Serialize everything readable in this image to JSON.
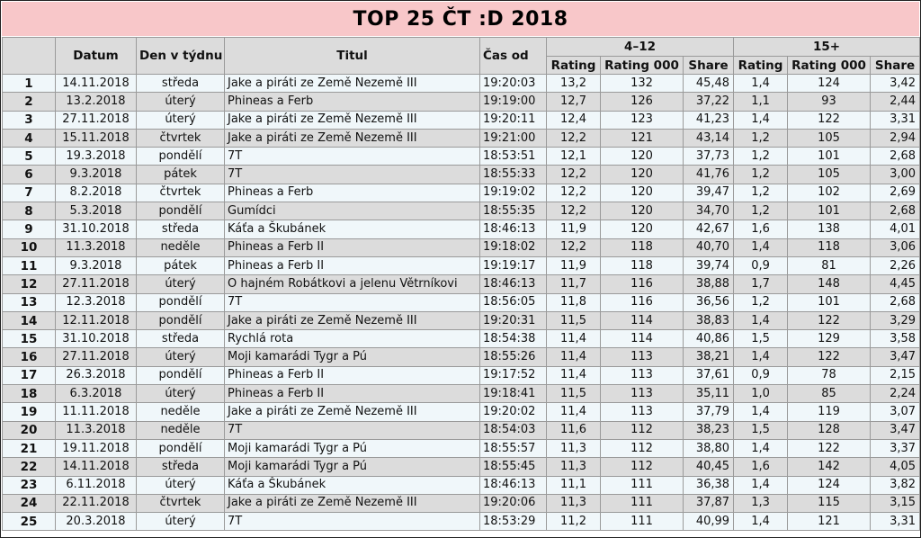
{
  "title": "TOP 25 ČT :D 2018",
  "headers": {
    "datum": "Datum",
    "den": "Den v týdnu",
    "titul": "Titul",
    "cas": "Čas od",
    "group1": "4–12",
    "group2": "15+",
    "rating": "Rating",
    "rating000": "Rating 000",
    "share": "Share"
  },
  "rows": [
    {
      "rank": "1",
      "datum": "14.11.2018",
      "den": "středa",
      "titul": "Jake a piráti ze Země Nezemě III",
      "cas": "19:20:03",
      "r1": "13,2",
      "r1k": "132",
      "s1": "45,48",
      "r2": "1,4",
      "r2k": "124",
      "s2": "3,42"
    },
    {
      "rank": "2",
      "datum": "13.2.2018",
      "den": "úterý",
      "titul": "Phineas a Ferb",
      "cas": "19:19:00",
      "r1": "12,7",
      "r1k": "126",
      "s1": "37,22",
      "r2": "1,1",
      "r2k": "93",
      "s2": "2,44"
    },
    {
      "rank": "3",
      "datum": "27.11.2018",
      "den": "úterý",
      "titul": "Jake a piráti ze Země Nezemě III",
      "cas": "19:20:11",
      "r1": "12,4",
      "r1k": "123",
      "s1": "41,23",
      "r2": "1,4",
      "r2k": "122",
      "s2": "3,31"
    },
    {
      "rank": "4",
      "datum": "15.11.2018",
      "den": "čtvrtek",
      "titul": "Jake a piráti ze Země Nezemě III",
      "cas": "19:21:00",
      "r1": "12,2",
      "r1k": "121",
      "s1": "43,14",
      "r2": "1,2",
      "r2k": "105",
      "s2": "2,94"
    },
    {
      "rank": "5",
      "datum": "19.3.2018",
      "den": "pondělí",
      "titul": "7T",
      "cas": "18:53:51",
      "r1": "12,1",
      "r1k": "120",
      "s1": "37,73",
      "r2": "1,2",
      "r2k": "101",
      "s2": "2,68"
    },
    {
      "rank": "6",
      "datum": "9.3.2018",
      "den": "pátek",
      "titul": "7T",
      "cas": "18:55:33",
      "r1": "12,2",
      "r1k": "120",
      "s1": "41,76",
      "r2": "1,2",
      "r2k": "105",
      "s2": "3,00"
    },
    {
      "rank": "7",
      "datum": "8.2.2018",
      "den": "čtvrtek",
      "titul": "Phineas a Ferb",
      "cas": "19:19:02",
      "r1": "12,2",
      "r1k": "120",
      "s1": "39,47",
      "r2": "1,2",
      "r2k": "102",
      "s2": "2,69"
    },
    {
      "rank": "8",
      "datum": "5.3.2018",
      "den": "pondělí",
      "titul": "Gumídci",
      "cas": "18:55:35",
      "r1": "12,2",
      "r1k": "120",
      "s1": "34,70",
      "r2": "1,2",
      "r2k": "101",
      "s2": "2,68"
    },
    {
      "rank": "9",
      "datum": "31.10.2018",
      "den": "středa",
      "titul": "Káťa a Škubánek",
      "cas": "18:46:13",
      "r1": "11,9",
      "r1k": "120",
      "s1": "42,67",
      "r2": "1,6",
      "r2k": "138",
      "s2": "4,01"
    },
    {
      "rank": "10",
      "datum": "11.3.2018",
      "den": "neděle",
      "titul": "Phineas a Ferb II",
      "cas": "19:18:02",
      "r1": "12,2",
      "r1k": "118",
      "s1": "40,70",
      "r2": "1,4",
      "r2k": "118",
      "s2": "3,06"
    },
    {
      "rank": "11",
      "datum": "9.3.2018",
      "den": "pátek",
      "titul": "Phineas a Ferb II",
      "cas": "19:19:17",
      "r1": "11,9",
      "r1k": "118",
      "s1": "39,74",
      "r2": "0,9",
      "r2k": "81",
      "s2": "2,26"
    },
    {
      "rank": "12",
      "datum": "27.11.2018",
      "den": "úterý",
      "titul": "O hajném Robátkovi a jelenu Větrníkovi",
      "cas": "18:46:13",
      "r1": "11,7",
      "r1k": "116",
      "s1": "38,88",
      "r2": "1,7",
      "r2k": "148",
      "s2": "4,45"
    },
    {
      "rank": "13",
      "datum": "12.3.2018",
      "den": "pondělí",
      "titul": "7T",
      "cas": "18:56:05",
      "r1": "11,8",
      "r1k": "116",
      "s1": "36,56",
      "r2": "1,2",
      "r2k": "101",
      "s2": "2,68"
    },
    {
      "rank": "14",
      "datum": "12.11.2018",
      "den": "pondělí",
      "titul": "Jake a piráti ze Země Nezemě III",
      "cas": "19:20:31",
      "r1": "11,5",
      "r1k": "114",
      "s1": "38,83",
      "r2": "1,4",
      "r2k": "122",
      "s2": "3,29"
    },
    {
      "rank": "15",
      "datum": "31.10.2018",
      "den": "středa",
      "titul": "Rychlá rota",
      "cas": "18:54:38",
      "r1": "11,4",
      "r1k": "114",
      "s1": "40,86",
      "r2": "1,5",
      "r2k": "129",
      "s2": "3,58"
    },
    {
      "rank": "16",
      "datum": "27.11.2018",
      "den": "úterý",
      "titul": "Moji kamarádi Tygr a Pú",
      "cas": "18:55:26",
      "r1": "11,4",
      "r1k": "113",
      "s1": "38,21",
      "r2": "1,4",
      "r2k": "122",
      "s2": "3,47"
    },
    {
      "rank": "17",
      "datum": "26.3.2018",
      "den": "pondělí",
      "titul": "Phineas a Ferb II",
      "cas": "19:17:52",
      "r1": "11,4",
      "r1k": "113",
      "s1": "37,61",
      "r2": "0,9",
      "r2k": "78",
      "s2": "2,15"
    },
    {
      "rank": "18",
      "datum": "6.3.2018",
      "den": "úterý",
      "titul": "Phineas a Ferb II",
      "cas": "19:18:41",
      "r1": "11,5",
      "r1k": "113",
      "s1": "35,11",
      "r2": "1,0",
      "r2k": "85",
      "s2": "2,24"
    },
    {
      "rank": "19",
      "datum": "11.11.2018",
      "den": "neděle",
      "titul": "Jake a piráti ze Země Nezemě III",
      "cas": "19:20:02",
      "r1": "11,4",
      "r1k": "113",
      "s1": "37,79",
      "r2": "1,4",
      "r2k": "119",
      "s2": "3,07"
    },
    {
      "rank": "20",
      "datum": "11.3.2018",
      "den": "neděle",
      "titul": "7T",
      "cas": "18:54:03",
      "r1": "11,6",
      "r1k": "112",
      "s1": "38,23",
      "r2": "1,5",
      "r2k": "128",
      "s2": "3,47"
    },
    {
      "rank": "21",
      "datum": "19.11.2018",
      "den": "pondělí",
      "titul": "Moji kamarádi Tygr a Pú",
      "cas": "18:55:57",
      "r1": "11,3",
      "r1k": "112",
      "s1": "38,80",
      "r2": "1,4",
      "r2k": "122",
      "s2": "3,37"
    },
    {
      "rank": "22",
      "datum": "14.11.2018",
      "den": "středa",
      "titul": "Moji kamarádi Tygr a Pú",
      "cas": "18:55:45",
      "r1": "11,3",
      "r1k": "112",
      "s1": "40,45",
      "r2": "1,6",
      "r2k": "142",
      "s2": "4,05"
    },
    {
      "rank": "23",
      "datum": "6.11.2018",
      "den": "úterý",
      "titul": "Káťa a Škubánek",
      "cas": "18:46:13",
      "r1": "11,1",
      "r1k": "111",
      "s1": "36,38",
      "r2": "1,4",
      "r2k": "124",
      "s2": "3,82"
    },
    {
      "rank": "24",
      "datum": "22.11.2018",
      "den": "čtvrtek",
      "titul": "Jake a piráti ze Země Nezemě III",
      "cas": "19:20:06",
      "r1": "11,3",
      "r1k": "111",
      "s1": "37,87",
      "r2": "1,3",
      "r2k": "115",
      "s2": "3,15"
    },
    {
      "rank": "25",
      "datum": "20.3.2018",
      "den": "úterý",
      "titul": "7T",
      "cas": "18:53:29",
      "r1": "11,2",
      "r1k": "111",
      "s1": "40,99",
      "r2": "1,4",
      "r2k": "121",
      "s2": "3,31"
    }
  ],
  "colors": {
    "title_bg": "#f8c7c9",
    "header_bg": "#dcdcdc",
    "row_light": "#f0f7fa",
    "row_dark": "#dcdcdc"
  }
}
